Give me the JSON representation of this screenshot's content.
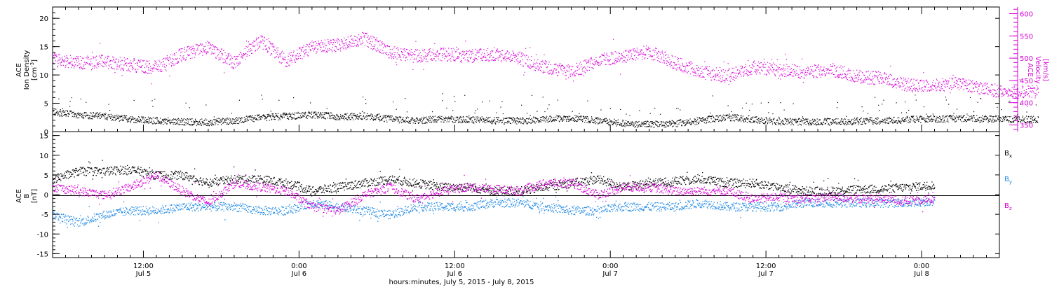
{
  "colors": {
    "black": "#000000",
    "magenta": "#d800d8",
    "blue": "#1e88e5"
  },
  "chart_data": [
    {
      "type": "scatter",
      "panel": "top",
      "ylabel_left": [
        "ACE",
        "Ion Density",
        "[cm^-3]"
      ],
      "ylabel_right": [
        "ACE",
        "Velocity",
        "[km/s]"
      ],
      "ylim_left": [
        0,
        22
      ],
      "ylim_right": [
        335,
        615
      ],
      "left_ticks": [
        "0",
        "5",
        "10",
        "15",
        "20"
      ],
      "right_ticks": [
        "350",
        "400",
        "450",
        "500",
        "550",
        "600"
      ],
      "series": [
        {
          "name": "Density",
          "axis": "left",
          "color": "black",
          "x_hours": [
            0,
            2,
            4,
            6,
            8,
            10,
            12,
            14,
            16,
            18,
            20,
            22,
            24,
            26,
            28,
            30,
            32,
            34,
            36,
            38,
            40,
            42,
            44,
            46,
            48,
            50,
            52,
            54,
            56,
            58,
            60,
            62,
            64,
            66,
            68,
            70,
            72,
            74,
            76
          ],
          "y": [
            3.5,
            3.0,
            2.8,
            2.2,
            2.0,
            1.8,
            1.7,
            2.0,
            2.5,
            2.8,
            3.0,
            2.7,
            2.8,
            2.3,
            2.0,
            2.3,
            2.2,
            2.0,
            2.0,
            2.2,
            2.5,
            2.0,
            1.5,
            1.3,
            1.5,
            2.0,
            2.6,
            2.2,
            1.8,
            1.8,
            1.8,
            1.9,
            2.0,
            2.2,
            2.3,
            2.4,
            2.3,
            2.2,
            2.2
          ]
        },
        {
          "name": "Velocity",
          "axis": "right",
          "color": "magenta",
          "x_hours": [
            0,
            2,
            4,
            6,
            8,
            10,
            12,
            14,
            16,
            18,
            20,
            22,
            24,
            26,
            28,
            30,
            32,
            34,
            36,
            38,
            40,
            42,
            44,
            46,
            48,
            50,
            52,
            54,
            56,
            58,
            60,
            62,
            64,
            66,
            68,
            70,
            72,
            74,
            76
          ],
          "y": [
            500,
            490,
            495,
            485,
            480,
            510,
            525,
            490,
            540,
            495,
            525,
            530,
            545,
            515,
            505,
            510,
            505,
            510,
            500,
            480,
            470,
            495,
            505,
            515,
            490,
            470,
            460,
            480,
            475,
            470,
            475,
            460,
            455,
            440,
            440,
            445,
            430,
            425,
            425
          ]
        }
      ]
    },
    {
      "type": "scatter",
      "panel": "bottom",
      "ylabel": [
        "ACE",
        "B",
        "[nT]"
      ],
      "ylim": [
        -16,
        16
      ],
      "y_ticks": [
        "-15",
        "-10",
        "-5",
        "0",
        "5",
        "10",
        "15"
      ],
      "x_tick_labels": [
        [
          "12:00",
          "Jul 5"
        ],
        [
          "0:00",
          "Jul 6"
        ],
        [
          "12:00",
          "Jul 6"
        ],
        [
          "0:00",
          "Jul 7"
        ],
        [
          "12:00",
          "Jul 7"
        ],
        [
          "0:00",
          "Jul 8"
        ]
      ],
      "x_tick_hours": [
        12,
        24,
        36,
        48,
        60,
        72
      ],
      "xlim_hours": [
        5,
        78
      ],
      "xlabel": "hours:minutes, July  5, 2015 - July  8, 2015",
      "legend": [
        {
          "label": "B",
          "sub": "x",
          "color": "black"
        },
        {
          "label": "B",
          "sub": "y",
          "color": "blue"
        },
        {
          "label": "B",
          "sub": "z",
          "color": "magenta"
        }
      ],
      "series": [
        {
          "name": "Bx",
          "color": "black",
          "x_hours": [
            5,
            7,
            9,
            11,
            13,
            15,
            17,
            19,
            21,
            23,
            25,
            27,
            29,
            31,
            33,
            35,
            37,
            39,
            41,
            43,
            45,
            47,
            49,
            51,
            53,
            55,
            57,
            59,
            61,
            63,
            65,
            67,
            69,
            71,
            73
          ],
          "y": [
            4,
            6,
            6,
            6.5,
            5,
            5,
            3,
            4,
            4,
            3,
            1,
            2,
            3,
            4,
            3,
            2,
            2,
            1,
            1,
            2,
            3,
            4,
            2,
            3,
            3.5,
            4,
            3,
            3,
            2,
            1,
            1,
            1.5,
            1.5,
            2,
            2.5
          ]
        },
        {
          "name": "By",
          "color": "blue",
          "x_hours": [
            5,
            7,
            9,
            11,
            13,
            15,
            17,
            19,
            21,
            23,
            25,
            27,
            29,
            31,
            33,
            35,
            37,
            39,
            41,
            43,
            45,
            47,
            49,
            51,
            53,
            55,
            57,
            59,
            61,
            63,
            65,
            67,
            69,
            71,
            73
          ],
          "y": [
            -5,
            -7,
            -5,
            -4,
            -4,
            -3,
            -3,
            -3,
            -4,
            -4,
            -2,
            -3,
            -4,
            -5,
            -3,
            -3,
            -3,
            -2,
            -2,
            -3,
            -4,
            -4,
            -3,
            -3,
            -3,
            -2,
            -3,
            -3,
            -3,
            -2,
            -2,
            -2,
            -2,
            -2,
            -1.5
          ]
        },
        {
          "name": "Bz",
          "color": "magenta",
          "x_hours": [
            5,
            7,
            9,
            11,
            13,
            15,
            17,
            19,
            21,
            23,
            25,
            27,
            29,
            31,
            33,
            35,
            37,
            39,
            41,
            43,
            45,
            47,
            49,
            51,
            53,
            55,
            57,
            59,
            61,
            63,
            65,
            67,
            69,
            71,
            73
          ],
          "y": [
            2,
            1,
            0,
            2,
            5,
            1,
            -2,
            3,
            2,
            1,
            -3,
            -4,
            0,
            2,
            -1,
            1,
            2,
            1.5,
            1,
            3,
            3,
            0,
            2,
            2,
            1,
            1,
            1,
            -1,
            -0.5,
            -1,
            -0.5,
            -1,
            -1,
            -1.5,
            -1
          ]
        }
      ]
    }
  ]
}
